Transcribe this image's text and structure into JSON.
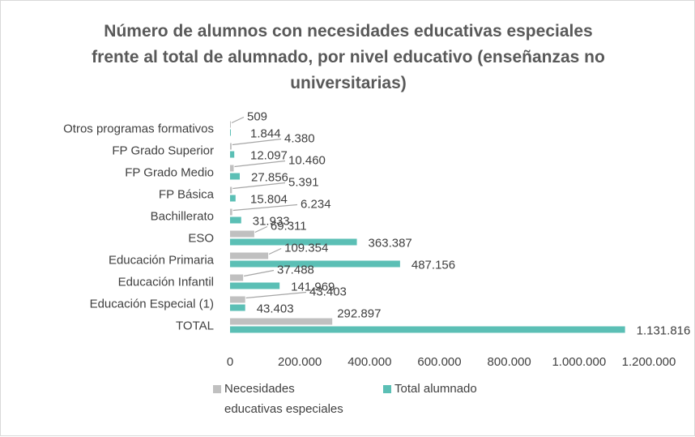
{
  "chart_data": {
    "type": "bar",
    "orientation": "horizontal",
    "title": [
      "Número de alumnos con necesidades educativas especiales",
      "frente al total de alumnado, por nivel educativo (enseñanzas no",
      "universitarias)"
    ],
    "categories": [
      "Otros programas formativos",
      "FP Grado Superior",
      "FP Grado Medio",
      "FP Básica",
      "Bachillerato",
      "ESO",
      "Educación Primaria",
      "Educación Infantil",
      "Educación Especial (1)",
      "TOTAL"
    ],
    "series": [
      {
        "name": "Necesidades educativas especiales",
        "legend_lines": [
          "Necesidades",
          "educativas especiales"
        ],
        "color": "#c0c0c0",
        "values": [
          509,
          4380,
          10460,
          5391,
          6234,
          69311,
          109354,
          37488,
          43403,
          292897
        ],
        "labels": [
          "509",
          "4.380",
          "10.460",
          "5.391",
          "6.234",
          "69.311",
          "109.354",
          "37.488",
          "43.403",
          "292.897"
        ]
      },
      {
        "name": "Total alumnado",
        "legend_lines": [
          "Total alumnado"
        ],
        "color": "#5bbfb5",
        "values": [
          1844,
          12097,
          27856,
          15804,
          31933,
          363387,
          487156,
          141969,
          43403,
          1131816
        ],
        "labels": [
          "1.844",
          "12.097",
          "27.856",
          "15.804",
          "31.933",
          "363.387",
          "487.156",
          "141.969",
          "43.403",
          "1.131.816"
        ]
      }
    ],
    "xlim": [
      0,
      1200000
    ],
    "xticks": [
      0,
      200000,
      400000,
      600000,
      800000,
      1000000,
      1200000
    ],
    "xtick_labels": [
      "0",
      "200.000",
      "400.000",
      "600.000",
      "800.000",
      "1.000.000",
      "1.200.000"
    ],
    "grid": false,
    "legend_position": "bottom"
  }
}
